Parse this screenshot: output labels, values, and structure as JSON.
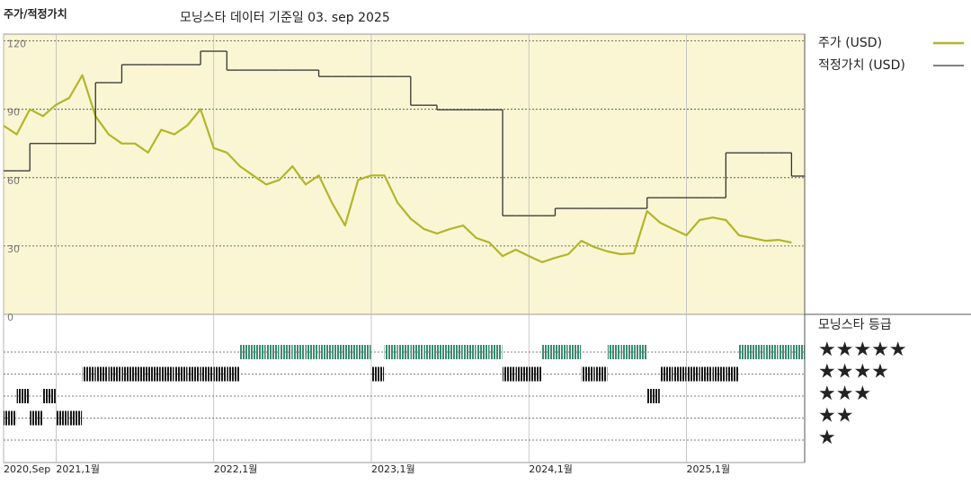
{
  "chart_data": {
    "type": "line",
    "heading": "주가/적정가치",
    "title": "모닝스타 데이터 기준일 03. sep 2025",
    "x": [
      "2020-09",
      "2020-10",
      "2020-11",
      "2020-12",
      "2021-01",
      "2021-02",
      "2021-03",
      "2021-04",
      "2021-05",
      "2021-06",
      "2021-07",
      "2021-08",
      "2021-09",
      "2021-10",
      "2021-11",
      "2021-12",
      "2022-01",
      "2022-02",
      "2022-03",
      "2022-04",
      "2022-05",
      "2022-06",
      "2022-07",
      "2022-08",
      "2022-09",
      "2022-10",
      "2022-11",
      "2022-12",
      "2023-01",
      "2023-02",
      "2023-03",
      "2023-04",
      "2023-05",
      "2023-06",
      "2023-07",
      "2023-08",
      "2023-09",
      "2023-10",
      "2023-11",
      "2023-12",
      "2024-01",
      "2024-02",
      "2024-03",
      "2024-04",
      "2024-05",
      "2024-06",
      "2024-07",
      "2024-08",
      "2024-09",
      "2024-10",
      "2024-11",
      "2024-12",
      "2025-01",
      "2025-02",
      "2025-03",
      "2025-04",
      "2025-05",
      "2025-06",
      "2025-07",
      "2025-08",
      "2025-09"
    ],
    "xlim": [
      "2020-09",
      "2025-10"
    ],
    "xticks": [
      {
        "value": "2020-09",
        "label": "2020,Sep"
      },
      {
        "value": "2021-01",
        "label": "2021,1월"
      },
      {
        "value": "2022-01",
        "label": "2022,1월"
      },
      {
        "value": "2023-01",
        "label": "2023,1월"
      },
      {
        "value": "2024-01",
        "label": "2024,1월"
      },
      {
        "value": "2025-01",
        "label": "2025,1월"
      }
    ],
    "ylim": [
      0,
      123
    ],
    "yticks": [
      0,
      30,
      60,
      90,
      120
    ],
    "grid": true,
    "series": [
      {
        "name": "주가 (USD)",
        "color": "#b3b52b",
        "values": [
          82.8,
          79,
          90,
          87,
          92,
          95,
          105,
          87,
          79,
          75,
          75,
          71,
          81,
          79,
          83,
          90,
          73,
          71,
          65,
          61,
          57,
          59,
          65,
          57,
          61,
          49,
          39,
          59,
          61,
          61,
          49,
          42,
          37.5,
          35.5,
          37.5,
          39,
          33.5,
          31.5,
          25.6,
          28.4,
          25.6,
          22.9,
          24.8,
          26.4,
          32.3,
          29.5,
          27.6,
          26.4,
          26.8,
          45.3,
          40.2,
          37.4,
          34.7,
          41.4,
          42.5,
          41.4,
          34.7,
          33.5,
          32.3,
          32.7,
          31.5
        ]
      },
      {
        "name": "적정가치 (USD)",
        "color": "#333333",
        "step": true,
        "values": [
          63,
          63,
          75,
          75,
          75,
          75,
          75,
          101.7,
          101.7,
          109.6,
          109.6,
          109.6,
          109.6,
          109.6,
          109.6,
          115.5,
          115.5,
          107.2,
          107.2,
          107.2,
          107.2,
          107.2,
          107.2,
          107.2,
          104.4,
          104.4,
          104.4,
          104.4,
          104.4,
          104.4,
          104.4,
          91.8,
          91.8,
          89.8,
          89.8,
          89.8,
          89.8,
          89.8,
          43.3,
          43.3,
          43.3,
          43.3,
          46.5,
          46.5,
          46.5,
          46.5,
          46.5,
          46.5,
          46.5,
          51.2,
          51.2,
          51.2,
          51.2,
          51.2,
          51.2,
          70.9,
          70.9,
          70.9,
          70.9,
          70.9,
          60.7
        ]
      }
    ],
    "rating": {
      "title": "모닝스타 등급",
      "color": "#1a1a1a",
      "top_color": "#3d8a70",
      "levels": [
        {
          "value": 5,
          "label": "★★★★★"
        },
        {
          "value": 4,
          "label": "★★★★"
        },
        {
          "value": 3,
          "label": "★★★"
        },
        {
          "value": 2,
          "label": "★★"
        },
        {
          "value": 1,
          "label": "★"
        }
      ],
      "values": [
        2,
        3,
        2,
        3,
        2,
        2,
        4,
        4,
        4,
        4,
        4,
        4,
        4,
        4,
        4,
        4,
        4,
        4,
        5,
        5,
        5,
        5,
        5,
        5,
        5,
        5,
        5,
        5,
        4,
        5,
        5,
        5,
        5,
        5,
        5,
        5,
        5,
        5,
        4,
        4,
        4,
        5,
        5,
        5,
        4,
        4,
        5,
        5,
        5,
        3,
        4,
        4,
        4,
        4,
        4,
        4,
        5,
        5,
        5,
        5,
        5
      ]
    }
  }
}
